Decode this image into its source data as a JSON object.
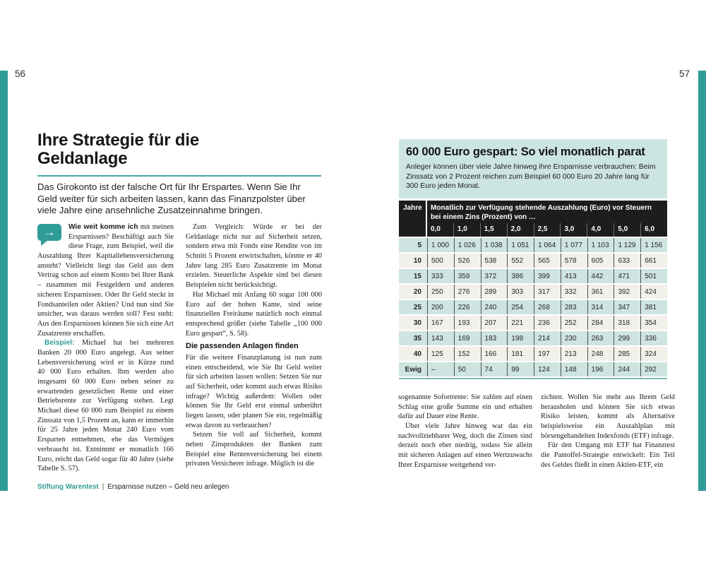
{
  "colors": {
    "accent": "#2f9c98",
    "table_box": "#cde5e2",
    "row_teal": "#cee4e1",
    "row_cream": "#f1f0ea",
    "header_black": "#1d1d1b"
  },
  "pages": {
    "left_number": "56",
    "right_number": "57"
  },
  "icons": {
    "callout_arrow": "→"
  },
  "left_page": {
    "title": "Ihre Strategie für die Geldanlage",
    "intro": "Das Girokonto ist der falsche Ort für Ihr Erspartes. Wenn Sie Ihr Geld weiter für sich arbeiten lassen, kann das Finanzpolster über viele Jahre eine ansehnliche Zusatzeinnahme bringen.",
    "col1": {
      "p1_lead": "Wie weit komme ich",
      "p1_rest": " mit meinen Ersparnissen? Beschäftigt auch Sie diese Frage, zum Beispiel, weil die Auszahlung Ihrer Kapitallebensversicherung ansteht? Vielleicht liegt das Geld aus dem Vertrag schon auf einem Konto bei Ihrer Bank – zusammen mit Festgeldern und anderen sicheren Ersparnissen. Oder Ihr Geld steckt in Fondsanteilen oder Aktien? Und nun sind Sie unsicher, was daraus werden soll? Fest steht: Aus den Ersparnissen können Sie sich eine Art Zusatzrente erschaffen.",
      "p2_lead": "Beispiel:",
      "p2_rest": " Michael hat bei mehreren Banken 20 000 Euro angelegt. Aus seiner Lebensversicherung wird er in Kürze rund 40 000 Euro erhalten. Ihm werden also insgesamt 60 000 Euro neben seiner zu erwartenden gesetzlichen Rente und einer Betriebsrente zur Verfügung stehen. Legt Michael diese 60 000 zum Beispiel zu einem Zinssatz von 1,5 Prozent an, kann er immerhin für 25 Jahre jeden Monat 240 Euro vom Ersparten entnehmen, ehe das Vermögen verbraucht ist. Entnimmt er monatlich 166 Euro, reicht das Geld sogar für 40 Jahre (siehe Tabelle S. 57)."
    },
    "col2": {
      "p1": "Zum Vergleich: Würde er bei der Geldanlage nicht nur auf Sicherheit setzen, sondern etwa mit Fonds eine Rendite von im Schnitt 5 Prozent erwirtschaften, könnte er 40 Jahre lang 285 Euro Zusatzrente im Monat erzielen. Steuerliche Aspekte sind bei diesen Beispielen nicht berücksichtigt.",
      "p2": "Hat Michael mit Anfang 60 sogar 100 000 Euro auf der hohen Kante, sind seine finanziellen Freiräume natürlich noch einmal entsprechend größer (siehe Tabelle „100 000 Euro gespart“, S. 58).",
      "heading": "Die passenden Anlagen finden",
      "p3": "Für die weitere Finanzplanung ist nun zum einen entscheidend, wie Sie Ihr Geld weiter für sich arbeiten lassen wollen: Setzen Sie nur auf Sicherheit, oder kommt auch etwas Risiko infrage? Wichtig außerdem: Wollen oder können Sie Ihr Geld erst einmal unberührt liegen lassen, oder planen Sie ein, regelmäßig etwas davon zu verbrauchen?",
      "p4": "Setzen Sie voll auf Sicherheit, kommt neben Zinsprodukten der Banken zum Beispiel eine Rentenversicherung bei einem privaten Versicherer infrage. Möglich ist die"
    },
    "footer": {
      "brand": "Stiftung Warentest",
      "sep": "|",
      "text": "Ersparnisse nutzen – Geld neu anlegen"
    }
  },
  "right_page": {
    "table": {
      "title": "60 000 Euro gespart: So viel monatlich parat",
      "caption": "Anleger können über viele Jahre hinweg ihre Ersparnisse verbrauchen: Beim Zinssatz von 2 Prozent reichen zum Beispiel 60 000 Euro 20 Jahre lang für 300 Euro jeden Monat.",
      "col0_header": "Jahre",
      "group_header": "Monatlich zur Verfügung stehende Auszahlung (Euro) vor Steuern bei einem Zins (Prozent) von …",
      "rate_headers": [
        "0,0",
        "1,0",
        "1,5",
        "2,0",
        "2,5",
        "3,0",
        "4,0",
        "5,0",
        "6,0"
      ],
      "rows": [
        {
          "label": "5",
          "values": [
            "1 000",
            "1 026",
            "1 038",
            "1 051",
            "1 064",
            "1 077",
            "1 103",
            "1 129",
            "1 156"
          ]
        },
        {
          "label": "10",
          "values": [
            "500",
            "526",
            "538",
            "552",
            "565",
            "578",
            "605",
            "633",
            "661"
          ]
        },
        {
          "label": "15",
          "values": [
            "333",
            "359",
            "372",
            "386",
            "399",
            "413",
            "442",
            "471",
            "501"
          ]
        },
        {
          "label": "20",
          "values": [
            "250",
            "276",
            "289",
            "303",
            "317",
            "332",
            "361",
            "392",
            "424"
          ]
        },
        {
          "label": "25",
          "values": [
            "200",
            "226",
            "240",
            "254",
            "268",
            "283",
            "314",
            "347",
            "381"
          ]
        },
        {
          "label": "30",
          "values": [
            "167",
            "193",
            "207",
            "221",
            "236",
            "252",
            "284",
            "318",
            "354"
          ]
        },
        {
          "label": "35",
          "values": [
            "143",
            "169",
            "183",
            "198",
            "214",
            "230",
            "263",
            "299",
            "336"
          ]
        },
        {
          "label": "40",
          "values": [
            "125",
            "152",
            "166",
            "181",
            "197",
            "213",
            "248",
            "285",
            "324"
          ]
        },
        {
          "label": "Ewig",
          "values": [
            "–",
            "50",
            "74",
            "99",
            "124",
            "148",
            "196",
            "244",
            "292"
          ]
        }
      ]
    },
    "col1": {
      "p1": "sogenannte Sofortrente: Sie zahlen auf einen Schlag eine große Summe ein und erhalten dafür auf Dauer eine Rente.",
      "p2": "Über viele Jahre hinweg war das ein nachvollziehbarer Weg, doch die Zinsen sind derzeit noch eher niedrig, sodass Sie allein mit sicheren Anlagen auf einen Wertzuwachs Ihrer Ersparnisse weitgehend ver-"
    },
    "col2": {
      "p1": "zichten. Wollen Sie mehr aus Ihrem Geld herausholen und können Sie sich etwas Risiko leisten, kommt als Alternative beispielsweise ein Auszahlplan mit börsengehandelten Indexfonds (ETF) infrage.",
      "p2": "Für den Umgang mit ETF hat Finanztest die Pantoffel-Strategie entwickelt: Ein Teil des Geldes fließt in einen Aktien-ETF, ein"
    }
  }
}
